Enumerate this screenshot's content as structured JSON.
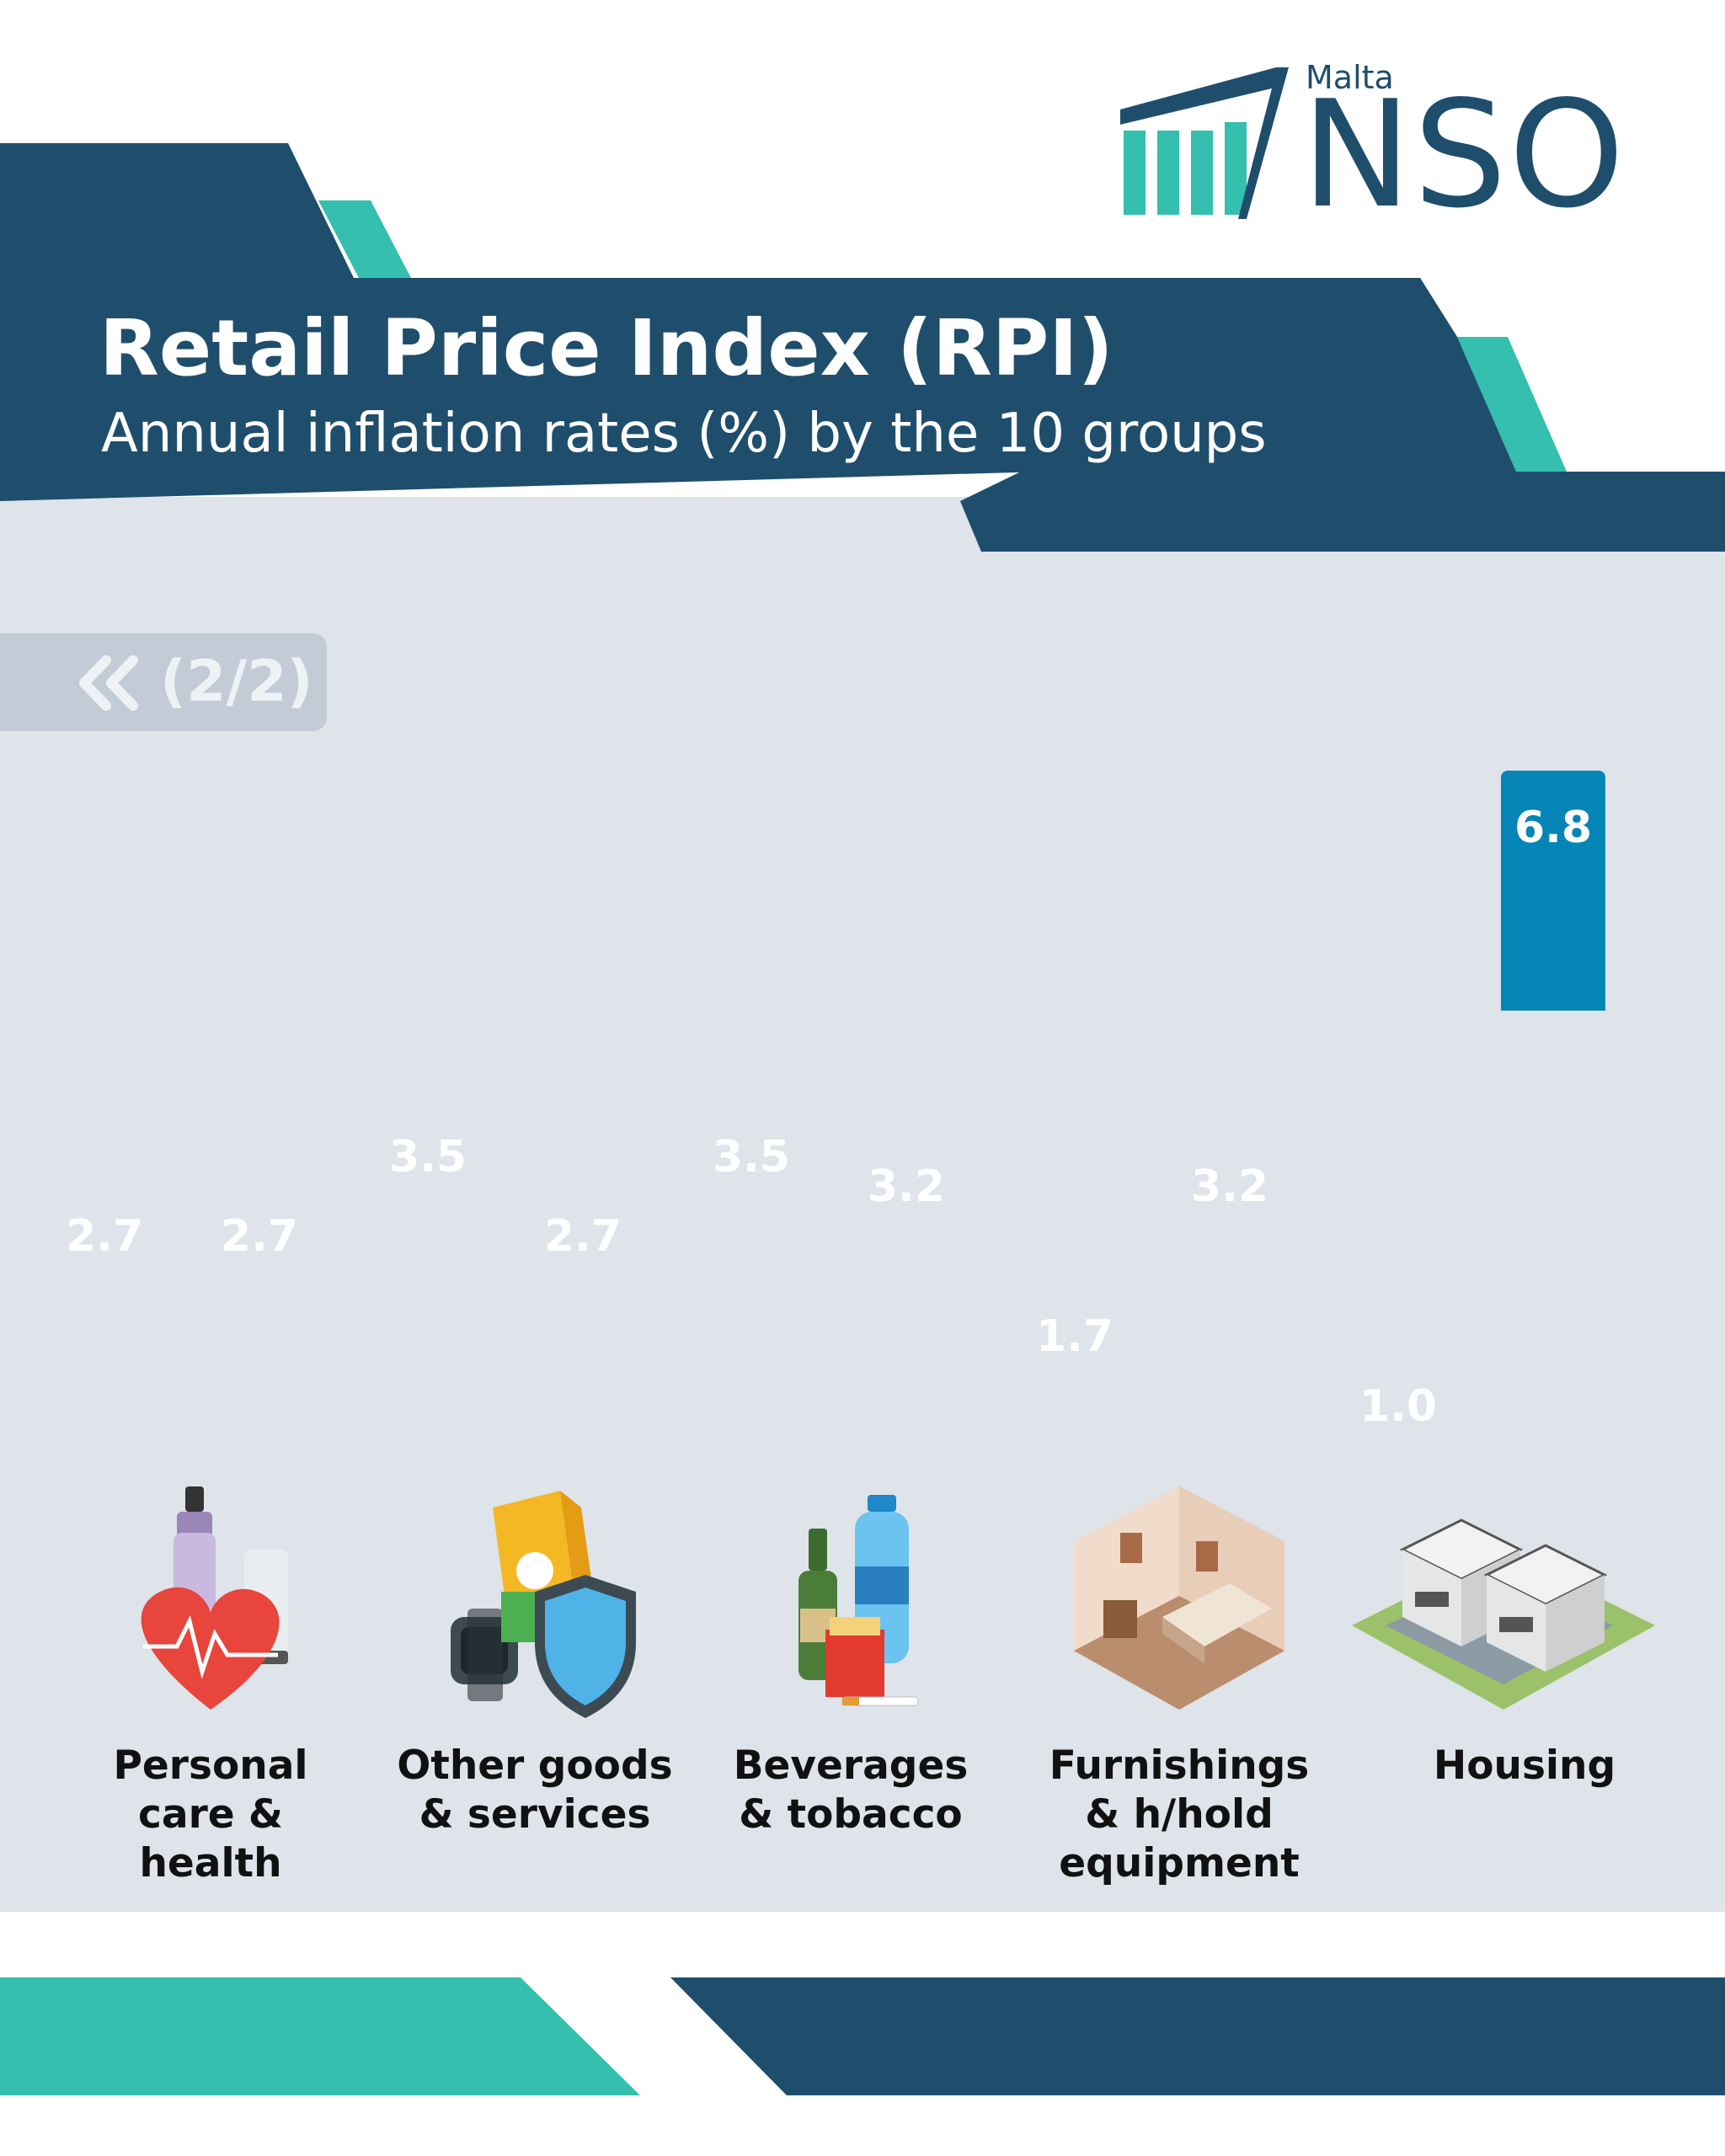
{
  "brand": {
    "small": "Malta",
    "name": "NSO"
  },
  "title": "Retail Price Index (RPI)",
  "subtitle": "Annual inflation rates (%) by the 10 groups",
  "page_indicator": {
    "icon": "double-chevron-left-icon",
    "text": "(2/2)"
  },
  "colors": {
    "navy": "#1f4e6d",
    "teal": "#35bfae",
    "green_bar": "#2ec990",
    "blue_bar": "#0485b6",
    "chart_bg": "#dee4ea"
  },
  "chart_data": {
    "type": "bar",
    "categories": [
      "Personal\ncare &\nhealth",
      "Other goods\n& services",
      "Beverages\n& tobacco",
      "Furnishings\n& h/hold\nequipment",
      "Housing"
    ],
    "series": [
      {
        "values": [
          2.7,
          3.5,
          3.5,
          1.7,
          1.0
        ]
      },
      {
        "values": [
          2.7,
          2.7,
          3.2,
          3.2,
          6.8
        ]
      }
    ],
    "value_labels": [
      [
        "2.7",
        "3.5",
        "3.5",
        "1.7",
        "1.0"
      ],
      [
        "2.7",
        "2.7",
        "3.2",
        "3.2",
        "6.8"
      ]
    ],
    "ylim": [
      0,
      6.8
    ],
    "grid": false,
    "icons": [
      "personal-care-health-icon",
      "goods-services-icon",
      "beverages-tobacco-icon",
      "furnishings-icon",
      "housing-icon"
    ]
  }
}
